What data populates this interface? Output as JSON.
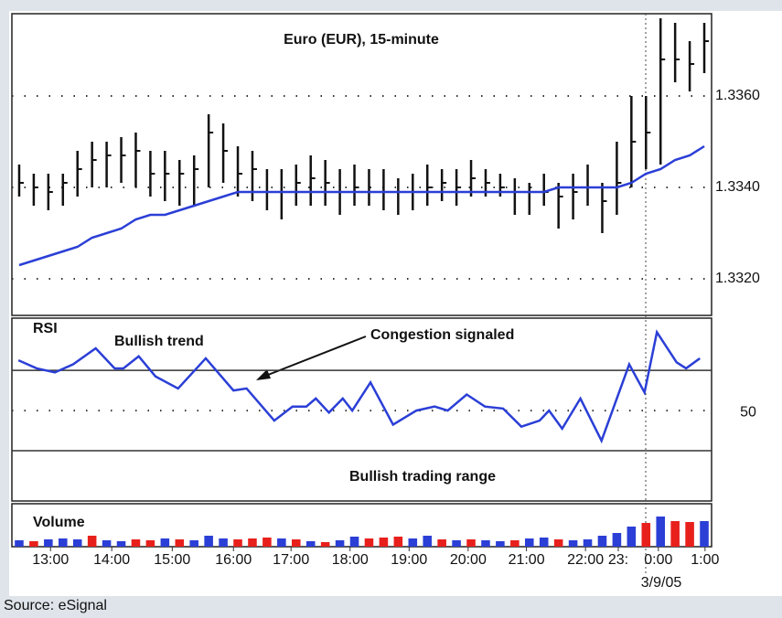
{
  "chart_data": [
    {
      "type": "ohlc",
      "title": "Euro (EUR), 15-minute",
      "xlim": [
        0,
        96
      ],
      "x": [
        1,
        3,
        5,
        7,
        9,
        11,
        13,
        15,
        17,
        19,
        21,
        23,
        25,
        27,
        29,
        31,
        33,
        35,
        37,
        39,
        41,
        43,
        45,
        47,
        49,
        51,
        53,
        55,
        57,
        59,
        61,
        63,
        65,
        67,
        69,
        71,
        73,
        75,
        77,
        79,
        81,
        83,
        85,
        87,
        89,
        91,
        93,
        95
      ],
      "high": [
        1.3345,
        1.3343,
        1.3343,
        1.3343,
        1.3348,
        1.335,
        1.335,
        1.3351,
        1.3352,
        1.3348,
        1.3348,
        1.3346,
        1.3347,
        1.3356,
        1.3354,
        1.3349,
        1.3348,
        1.3344,
        1.3344,
        1.3345,
        1.3347,
        1.3346,
        1.3344,
        1.3345,
        1.3344,
        1.3344,
        1.3342,
        1.3343,
        1.3345,
        1.3344,
        1.3344,
        1.3346,
        1.3344,
        1.3343,
        1.3342,
        1.3341,
        1.3343,
        1.3341,
        1.3343,
        1.3345,
        1.3341,
        1.335,
        1.336,
        1.336,
        1.3377,
        1.3376,
        1.3372,
        1.3376
      ],
      "low": [
        1.3338,
        1.3336,
        1.3335,
        1.3336,
        1.3338,
        1.334,
        1.334,
        1.3341,
        1.334,
        1.3338,
        1.3337,
        1.3336,
        1.3336,
        1.334,
        1.3341,
        1.3338,
        1.3337,
        1.3335,
        1.3333,
        1.3336,
        1.3336,
        1.3336,
        1.3334,
        1.3336,
        1.3336,
        1.3335,
        1.3334,
        1.3335,
        1.3336,
        1.3337,
        1.3336,
        1.3338,
        1.3338,
        1.3338,
        1.3334,
        1.3334,
        1.3336,
        1.3331,
        1.3333,
        1.3336,
        1.333,
        1.3334,
        1.334,
        1.3344,
        1.3345,
        1.3363,
        1.3361,
        1.3365
      ],
      "close": [
        1.3341,
        1.334,
        1.3339,
        1.3341,
        1.3344,
        1.3346,
        1.3347,
        1.3347,
        1.3348,
        1.3343,
        1.3343,
        1.3343,
        1.3344,
        1.3352,
        1.3348,
        1.3343,
        1.3344,
        1.3339,
        1.3339,
        1.3341,
        1.3342,
        1.3341,
        1.3339,
        1.334,
        1.3339,
        1.3339,
        1.3339,
        1.3339,
        1.334,
        1.3341,
        1.334,
        1.3342,
        1.3341,
        1.334,
        1.3339,
        1.3339,
        1.3339,
        1.3338,
        1.3339,
        1.334,
        1.3337,
        1.3341,
        1.335,
        1.3352,
        1.3368,
        1.3368,
        1.3367,
        1.3372
      ],
      "ma": [
        1.3323,
        1.3324,
        1.3325,
        1.3326,
        1.3327,
        1.3329,
        1.333,
        1.3331,
        1.3333,
        1.3334,
        1.3334,
        1.3335,
        1.3336,
        1.3337,
        1.3338,
        1.3339,
        1.3339,
        1.3339,
        1.3339,
        1.3339,
        1.3339,
        1.3339,
        1.3339,
        1.3339,
        1.3339,
        1.3339,
        1.3339,
        1.3339,
        1.3339,
        1.3339,
        1.3339,
        1.3339,
        1.3339,
        1.3339,
        1.3339,
        1.3339,
        1.3339,
        1.334,
        1.334,
        1.334,
        1.334,
        1.334,
        1.3341,
        1.3343,
        1.3344,
        1.3346,
        1.3347,
        1.3349
      ],
      "color": "#111111",
      "ma_color": "#2b3fd6",
      "ylim": [
        1.3312,
        1.3378
      ],
      "yticks": [
        {
          "value": 1.336,
          "label": "1.3360"
        },
        {
          "value": 1.334,
          "label": "1.3340"
        },
        {
          "value": 1.332,
          "label": "1.3320"
        }
      ],
      "grid": true
    },
    {
      "type": "line",
      "title": "RSI",
      "annotations": [
        "Bullish trend",
        "Congestion signaled",
        "Bullish trading range"
      ],
      "xlim": [
        0,
        96
      ],
      "x": [
        0.9,
        3.4,
        5.9,
        8.4,
        11.5,
        14.1,
        15.3,
        17.4,
        19.7,
        22.8,
        26.6,
        30.4,
        32.2,
        36.0,
        38.5,
        40.4,
        41.7,
        43.5,
        45.4,
        46.7,
        49.2,
        52.3,
        55.5,
        58.0,
        59.8,
        62.4,
        64.9,
        67.4,
        69.9,
        72.4,
        73.7,
        75.5,
        78.0,
        80.9,
        84.7,
        86.8,
        88.5,
        91.2,
        92.5,
        94.4
      ],
      "values": [
        75,
        71,
        69,
        73,
        81,
        71,
        71,
        77,
        67,
        61,
        76,
        60,
        61,
        45,
        52,
        52,
        56,
        49,
        56,
        50,
        64,
        43,
        50,
        52,
        50,
        58,
        52,
        51,
        42,
        45,
        50,
        41,
        56,
        35,
        73,
        59,
        89,
        74,
        71,
        76
      ],
      "color": "#2b3fd6",
      "ylim": [
        5,
        96
      ],
      "yticks": [
        50
      ],
      "hlines": [
        30,
        70
      ],
      "grid": true
    },
    {
      "type": "bar",
      "title": "Volume",
      "xlim": [
        0,
        96
      ],
      "x": [
        1,
        3,
        5,
        7,
        9,
        11,
        13,
        15,
        17,
        19,
        21,
        23,
        25,
        27,
        29,
        31,
        33,
        35,
        37,
        39,
        41,
        43,
        45,
        47,
        49,
        51,
        53,
        55,
        57,
        59,
        61,
        63,
        65,
        67,
        69,
        71,
        73,
        75,
        77,
        79,
        81,
        83,
        85,
        87,
        89,
        91,
        93,
        95
      ],
      "values": [
        7,
        6,
        8,
        9,
        8,
        12,
        7,
        6,
        8,
        7,
        9,
        8,
        7,
        12,
        9,
        8,
        9,
        10,
        9,
        8,
        6,
        5,
        7,
        11,
        9,
        10,
        11,
        9,
        12,
        8,
        7,
        8,
        7,
        6,
        7,
        9,
        10,
        8,
        7,
        8,
        12,
        15,
        22,
        26,
        33,
        28,
        27,
        28
      ],
      "colors": [
        "#2b3fd6",
        "#e8201c",
        "#2b3fd6",
        "#2b3fd6",
        "#2b3fd6",
        "#e8201c",
        "#2b3fd6",
        "#2b3fd6",
        "#e8201c",
        "#e8201c",
        "#2b3fd6",
        "#e8201c",
        "#2b3fd6",
        "#2b3fd6",
        "#2b3fd6",
        "#e8201c",
        "#e8201c",
        "#e8201c",
        "#2b3fd6",
        "#e8201c",
        "#2b3fd6",
        "#e8201c",
        "#2b3fd6",
        "#2b3fd6",
        "#e8201c",
        "#e8201c",
        "#e8201c",
        "#2b3fd6",
        "#2b3fd6",
        "#e8201c",
        "#2b3fd6",
        "#e8201c",
        "#2b3fd6",
        "#2b3fd6",
        "#e8201c",
        "#2b3fd6",
        "#2b3fd6",
        "#e8201c",
        "#2b3fd6",
        "#2b3fd6",
        "#2b3fd6",
        "#2b3fd6",
        "#2b3fd6",
        "#e8201c",
        "#2b3fd6",
        "#e8201c",
        "#e8201c",
        "#2b3fd6"
      ],
      "ylim": [
        0,
        45
      ],
      "xticks": [
        {
          "value": 5.3,
          "label": "13:00"
        },
        {
          "value": 13.7,
          "label": "14:00"
        },
        {
          "value": 22,
          "label": "15:00"
        },
        {
          "value": 30.4,
          "label": "16:00"
        },
        {
          "value": 38.3,
          "label": "17:00"
        },
        {
          "value": 46.4,
          "label": "18:00"
        },
        {
          "value": 54.5,
          "label": "19:00"
        },
        {
          "value": 62.6,
          "label": "20:00"
        },
        {
          "value": 70.6,
          "label": "21:00"
        },
        {
          "value": 78.7,
          "label": "22:00"
        },
        {
          "value": 83.2,
          "label": "23:"
        },
        {
          "value": 88.7,
          "label": "0:00"
        },
        {
          "value": 95.1,
          "label": "1:00"
        }
      ],
      "date_label": "3/9/05"
    }
  ],
  "source": "Source: eSignal"
}
